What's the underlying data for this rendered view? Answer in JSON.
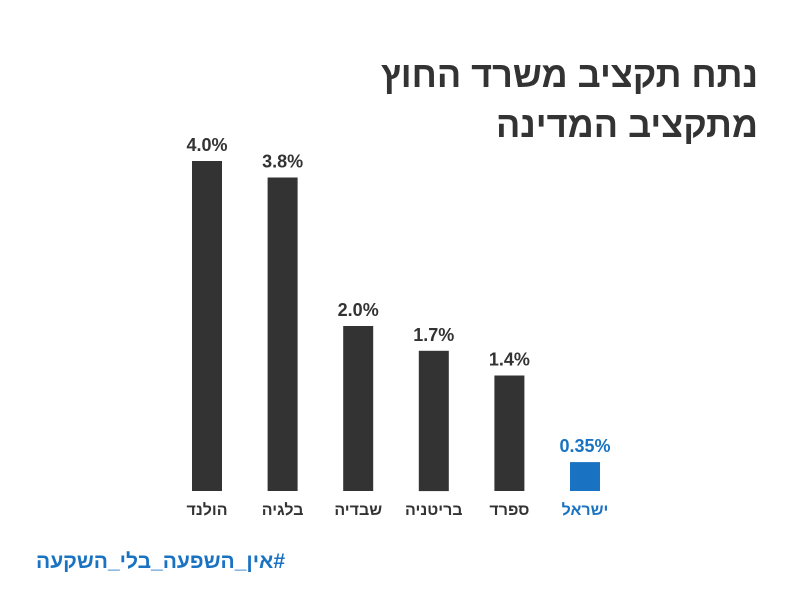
{
  "title_lines": [
    "נתח תקציב משרד החוץ",
    "מתקציב המדינה"
  ],
  "hashtag": "#אין_השפעה_בלי_השקעה",
  "colors": {
    "bar_default": "#333333",
    "bar_highlight": "#1a73c2",
    "title": "#333333",
    "hashtag": "#1a73c2"
  },
  "chart_data": {
    "type": "bar",
    "unit": "%",
    "categories": [
      "הולנד",
      "בלגיה",
      "שבדיה",
      "בריטניה",
      "ספרד",
      "ישראל"
    ],
    "values": [
      4.0,
      3.8,
      2.0,
      1.7,
      1.4,
      0.35
    ],
    "value_labels": [
      "4.0%",
      "3.8%",
      "2.0%",
      "1.7%",
      "1.4%",
      "0.35%"
    ],
    "highlight_category": "ישראל",
    "ylim": [
      0,
      4.0
    ],
    "grid": false,
    "axes_visible": false
  }
}
